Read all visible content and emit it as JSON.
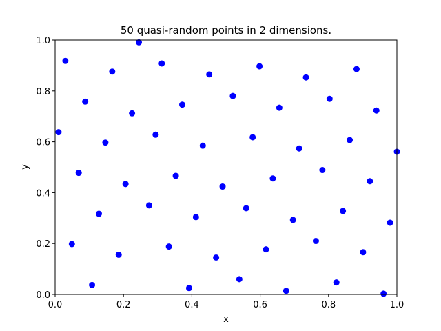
{
  "chart_data": {
    "type": "scatter",
    "title": "50 quasi-random points in 2 dimensions.",
    "xlabel": "x",
    "ylabel": "y",
    "xlim": [
      0.0,
      1.0
    ],
    "ylim": [
      0.0,
      1.0
    ],
    "xticks": [
      "0.0",
      "0.2",
      "0.4",
      "0.6",
      "0.8",
      "1.0"
    ],
    "yticks": [
      "0.0",
      "0.2",
      "0.4",
      "0.6",
      "0.8",
      "1.0"
    ],
    "grid": false,
    "marker_color": "#0000ff",
    "points": [
      [
        0.01,
        0.638
      ],
      [
        0.03,
        0.918
      ],
      [
        0.049,
        0.198
      ],
      [
        0.069,
        0.478
      ],
      [
        0.088,
        0.758
      ],
      [
        0.108,
        0.037
      ],
      [
        0.128,
        0.317
      ],
      [
        0.147,
        0.597
      ],
      [
        0.167,
        0.876
      ],
      [
        0.186,
        0.156
      ],
      [
        0.206,
        0.434
      ],
      [
        0.225,
        0.712
      ],
      [
        0.245,
        0.991
      ],
      [
        0.275,
        0.35
      ],
      [
        0.294,
        0.628
      ],
      [
        0.312,
        0.908
      ],
      [
        0.333,
        0.188
      ],
      [
        0.353,
        0.466
      ],
      [
        0.372,
        0.746
      ],
      [
        0.392,
        0.025
      ],
      [
        0.412,
        0.304
      ],
      [
        0.432,
        0.585
      ],
      [
        0.451,
        0.865
      ],
      [
        0.471,
        0.145
      ],
      [
        0.49,
        0.424
      ],
      [
        0.52,
        0.78
      ],
      [
        0.539,
        0.06
      ],
      [
        0.559,
        0.339
      ],
      [
        0.578,
        0.618
      ],
      [
        0.598,
        0.897
      ],
      [
        0.617,
        0.177
      ],
      [
        0.637,
        0.456
      ],
      [
        0.656,
        0.734
      ],
      [
        0.676,
        0.014
      ],
      [
        0.696,
        0.293
      ],
      [
        0.714,
        0.574
      ],
      [
        0.734,
        0.853
      ],
      [
        0.763,
        0.21
      ],
      [
        0.782,
        0.489
      ],
      [
        0.803,
        0.769
      ],
      [
        0.823,
        0.047
      ],
      [
        0.842,
        0.328
      ],
      [
        0.862,
        0.607
      ],
      [
        0.882,
        0.886
      ],
      [
        0.901,
        0.166
      ],
      [
        0.921,
        0.445
      ],
      [
        0.94,
        0.723
      ],
      [
        0.961,
        0.003
      ],
      [
        0.98,
        0.282
      ],
      [
        1.0,
        0.561
      ]
    ]
  }
}
